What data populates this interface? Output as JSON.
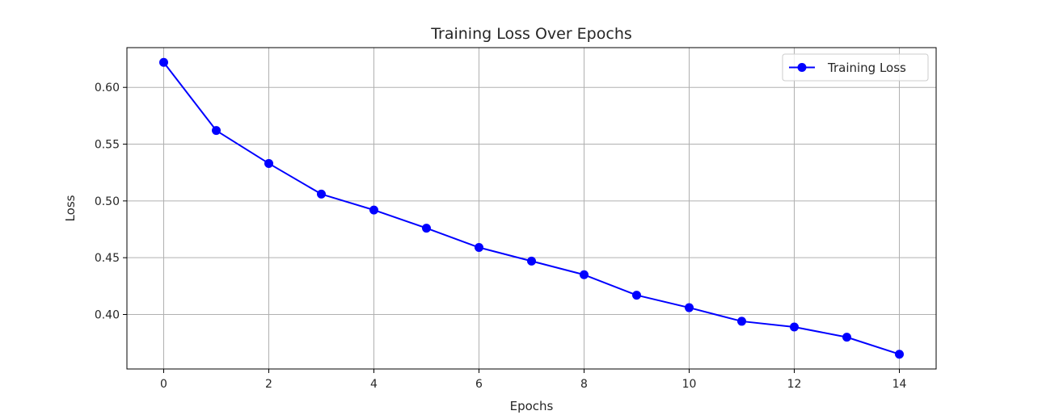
{
  "chart_data": {
    "type": "line",
    "title": "Training Loss Over Epochs",
    "xlabel": "Epochs",
    "ylabel": "Loss",
    "x": [
      0,
      1,
      2,
      3,
      4,
      5,
      6,
      7,
      8,
      9,
      10,
      11,
      12,
      13,
      14
    ],
    "series": [
      {
        "name": "Training Loss",
        "color": "#0000ff",
        "marker": "circle",
        "values": [
          0.622,
          0.562,
          0.533,
          0.506,
          0.492,
          0.476,
          0.459,
          0.447,
          0.435,
          0.417,
          0.406,
          0.394,
          0.389,
          0.38,
          0.365
        ]
      }
    ],
    "xlim": [
      -0.7,
      14.7
    ],
    "ylim": [
      0.352,
      0.635
    ],
    "xticks": [
      0,
      2,
      4,
      6,
      8,
      10,
      12,
      14
    ],
    "xtick_labels": [
      "0",
      "2",
      "4",
      "6",
      "8",
      "10",
      "12",
      "14"
    ],
    "yticks": [
      0.4,
      0.45,
      0.5,
      0.55,
      0.6
    ],
    "ytick_labels": [
      "0.40",
      "0.45",
      "0.50",
      "0.55",
      "0.60"
    ],
    "grid": true,
    "legend": "top-right"
  }
}
